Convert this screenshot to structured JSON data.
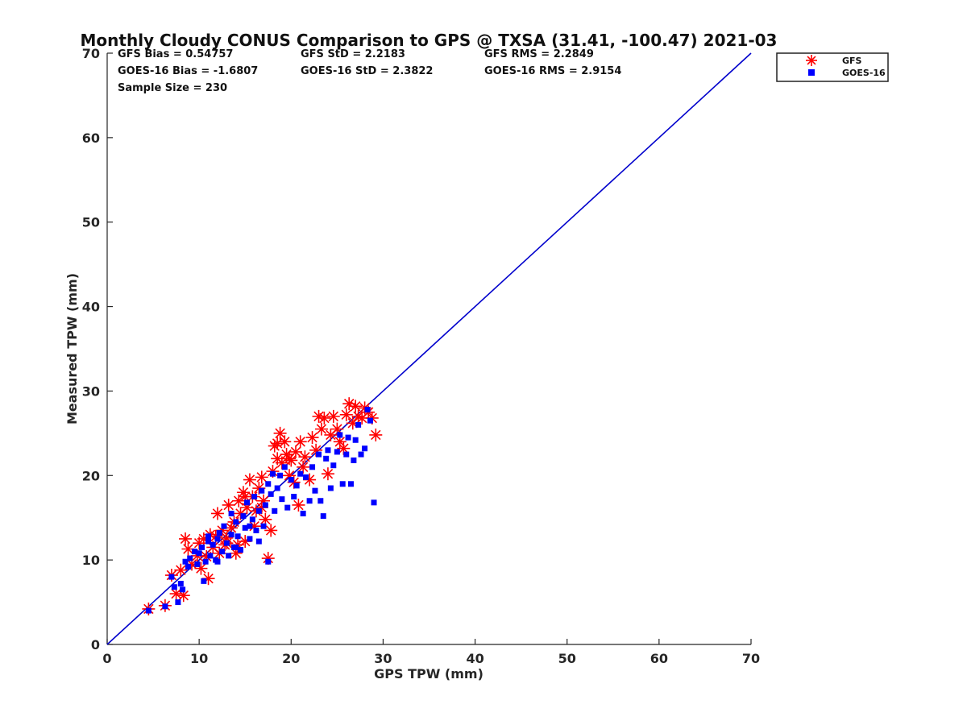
{
  "chart_data": {
    "type": "scatter",
    "title": "Monthly Cloudy CONUS Comparison to GPS @ TXSA (31.41, -100.47) 2021-03",
    "xlabel": "GPS TPW (mm)",
    "ylabel": "Measured TPW (mm)",
    "xlim": [
      0,
      70
    ],
    "ylim": [
      0,
      70
    ],
    "xticks": [
      0,
      10,
      20,
      30,
      40,
      50,
      60,
      70
    ],
    "yticks": [
      0,
      10,
      20,
      30,
      40,
      50,
      60,
      70
    ],
    "stats": {
      "gfs_bias": "GFS Bias = 0.54757",
      "gfs_std": "GFS StD = 2.2183",
      "gfs_rms": "GFS RMS = 2.2849",
      "goes_bias": "GOES-16 Bias = -1.6807",
      "goes_std": "GOES-16 StD = 2.3822",
      "goes_rms": "GOES-16 RMS = 2.9154",
      "sample": "Sample Size = 230"
    },
    "reference_line": {
      "x": [
        0,
        70
      ],
      "y": [
        0,
        70
      ],
      "color": "#0000cc"
    },
    "legend_position": "top-right-outside",
    "series": [
      {
        "name": "GFS",
        "marker": "asterisk",
        "color": "#ff0000",
        "points": [
          [
            4.5,
            4.2
          ],
          [
            6.3,
            4.6
          ],
          [
            7.0,
            8.2
          ],
          [
            7.5,
            6.0
          ],
          [
            8.0,
            8.8
          ],
          [
            8.3,
            5.8
          ],
          [
            8.5,
            12.5
          ],
          [
            8.8,
            11.3
          ],
          [
            9.2,
            9.5
          ],
          [
            9.8,
            10.5
          ],
          [
            10.0,
            12.0
          ],
          [
            10.2,
            9.0
          ],
          [
            10.5,
            12.5
          ],
          [
            10.8,
            10.4
          ],
          [
            11.0,
            7.8
          ],
          [
            11.2,
            13.0
          ],
          [
            11.5,
            11.5
          ],
          [
            11.8,
            12.8
          ],
          [
            12.0,
            15.5
          ],
          [
            12.2,
            10.8
          ],
          [
            12.5,
            13.5
          ],
          [
            12.8,
            11.8
          ],
          [
            13.0,
            12.6
          ],
          [
            13.2,
            16.5
          ],
          [
            13.5,
            13.8
          ],
          [
            13.8,
            14.5
          ],
          [
            14.0,
            10.8
          ],
          [
            14.3,
            17.0
          ],
          [
            14.5,
            15.5
          ],
          [
            14.8,
            18.0
          ],
          [
            15.0,
            12.2
          ],
          [
            15.2,
            16.2
          ],
          [
            15.5,
            19.5
          ],
          [
            15.8,
            17.5
          ],
          [
            16.0,
            14.0
          ],
          [
            16.2,
            15.8
          ],
          [
            16.5,
            18.5
          ],
          [
            16.8,
            19.8
          ],
          [
            17.0,
            17.0
          ],
          [
            17.2,
            14.8
          ],
          [
            17.5,
            10.2
          ],
          [
            17.8,
            13.5
          ],
          [
            18.0,
            20.5
          ],
          [
            18.2,
            23.5
          ],
          [
            18.5,
            22.0
          ],
          [
            18.8,
            25.0
          ],
          [
            19.0,
            21.5
          ],
          [
            19.3,
            24.0
          ],
          [
            19.5,
            22.5
          ],
          [
            19.8,
            20.0
          ],
          [
            20.0,
            21.8
          ],
          [
            20.3,
            19.2
          ],
          [
            20.5,
            22.8
          ],
          [
            20.8,
            16.5
          ],
          [
            21.0,
            24.0
          ],
          [
            21.3,
            21.0
          ],
          [
            21.5,
            22.2
          ],
          [
            22.0,
            19.5
          ],
          [
            22.3,
            24.5
          ],
          [
            22.7,
            23.0
          ],
          [
            23.0,
            27.0
          ],
          [
            23.3,
            25.5
          ],
          [
            23.6,
            26.8
          ],
          [
            24.0,
            20.2
          ],
          [
            24.3,
            24.8
          ],
          [
            24.6,
            27.0
          ],
          [
            25.0,
            25.5
          ],
          [
            25.3,
            24.0
          ],
          [
            25.7,
            23.2
          ],
          [
            26.0,
            27.2
          ],
          [
            26.3,
            28.5
          ],
          [
            26.7,
            26.2
          ],
          [
            27.0,
            28.2
          ],
          [
            27.3,
            27.0
          ],
          [
            27.7,
            26.8
          ],
          [
            28.0,
            28.0
          ],
          [
            28.4,
            27.5
          ],
          [
            28.8,
            26.8
          ],
          [
            29.2,
            24.8
          ],
          [
            13.0,
            12.0
          ],
          [
            15.0,
            17.5
          ],
          [
            18.5,
            23.8
          ],
          [
            19.8,
            22.0
          ],
          [
            16.8,
            16.2
          ],
          [
            14.2,
            11.8
          ]
        ]
      },
      {
        "name": "GOES-16",
        "marker": "square",
        "color": "#0000ff",
        "points": [
          [
            4.5,
            4.0
          ],
          [
            6.3,
            4.5
          ],
          [
            7.0,
            8.0
          ],
          [
            7.3,
            6.8
          ],
          [
            7.7,
            5.0
          ],
          [
            8.0,
            7.2
          ],
          [
            8.2,
            6.5
          ],
          [
            8.5,
            9.8
          ],
          [
            8.8,
            9.2
          ],
          [
            9.0,
            10.2
          ],
          [
            9.5,
            11.0
          ],
          [
            9.8,
            9.5
          ],
          [
            10.0,
            10.8
          ],
          [
            10.3,
            11.5
          ],
          [
            10.5,
            7.5
          ],
          [
            10.7,
            9.8
          ],
          [
            11.0,
            12.2
          ],
          [
            11.2,
            10.5
          ],
          [
            11.5,
            11.8
          ],
          [
            11.8,
            10.0
          ],
          [
            12.0,
            12.5
          ],
          [
            12.2,
            13.2
          ],
          [
            12.5,
            11.0
          ],
          [
            12.7,
            14.0
          ],
          [
            13.0,
            12.0
          ],
          [
            13.2,
            10.5
          ],
          [
            13.5,
            13.0
          ],
          [
            13.8,
            11.5
          ],
          [
            14.0,
            14.5
          ],
          [
            14.2,
            12.8
          ],
          [
            14.5,
            11.2
          ],
          [
            14.8,
            15.2
          ],
          [
            15.0,
            13.8
          ],
          [
            15.2,
            16.8
          ],
          [
            15.5,
            12.5
          ],
          [
            15.8,
            14.8
          ],
          [
            16.0,
            17.5
          ],
          [
            16.2,
            13.5
          ],
          [
            16.5,
            15.8
          ],
          [
            16.8,
            18.2
          ],
          [
            17.0,
            14.0
          ],
          [
            17.2,
            16.5
          ],
          [
            17.5,
            19.0
          ],
          [
            17.8,
            17.8
          ],
          [
            18.0,
            20.2
          ],
          [
            18.2,
            15.8
          ],
          [
            18.5,
            18.5
          ],
          [
            18.8,
            20.0
          ],
          [
            19.0,
            17.2
          ],
          [
            19.3,
            21.0
          ],
          [
            19.6,
            16.2
          ],
          [
            20.0,
            19.5
          ],
          [
            20.3,
            17.5
          ],
          [
            20.6,
            18.8
          ],
          [
            21.0,
            20.2
          ],
          [
            21.3,
            15.5
          ],
          [
            21.6,
            19.8
          ],
          [
            22.0,
            17.0
          ],
          [
            22.3,
            21.0
          ],
          [
            22.6,
            18.2
          ],
          [
            23.0,
            22.5
          ],
          [
            23.2,
            17.0
          ],
          [
            23.5,
            15.2
          ],
          [
            23.8,
            22.0
          ],
          [
            24.0,
            23.0
          ],
          [
            24.3,
            18.5
          ],
          [
            24.6,
            21.2
          ],
          [
            25.0,
            22.8
          ],
          [
            25.3,
            24.8
          ],
          [
            25.6,
            19.0
          ],
          [
            26.0,
            22.5
          ],
          [
            26.2,
            24.5
          ],
          [
            26.5,
            19.0
          ],
          [
            26.8,
            21.8
          ],
          [
            27.0,
            24.2
          ],
          [
            27.3,
            26.0
          ],
          [
            27.6,
            22.5
          ],
          [
            28.0,
            23.2
          ],
          [
            28.3,
            27.8
          ],
          [
            28.6,
            26.5
          ],
          [
            29.0,
            16.8
          ],
          [
            12.0,
            9.8
          ],
          [
            14.0,
            11.5
          ],
          [
            16.5,
            12.2
          ],
          [
            17.5,
            9.8
          ],
          [
            11.0,
            12.8
          ],
          [
            13.5,
            15.5
          ],
          [
            15.5,
            14.0
          ]
        ]
      }
    ]
  }
}
